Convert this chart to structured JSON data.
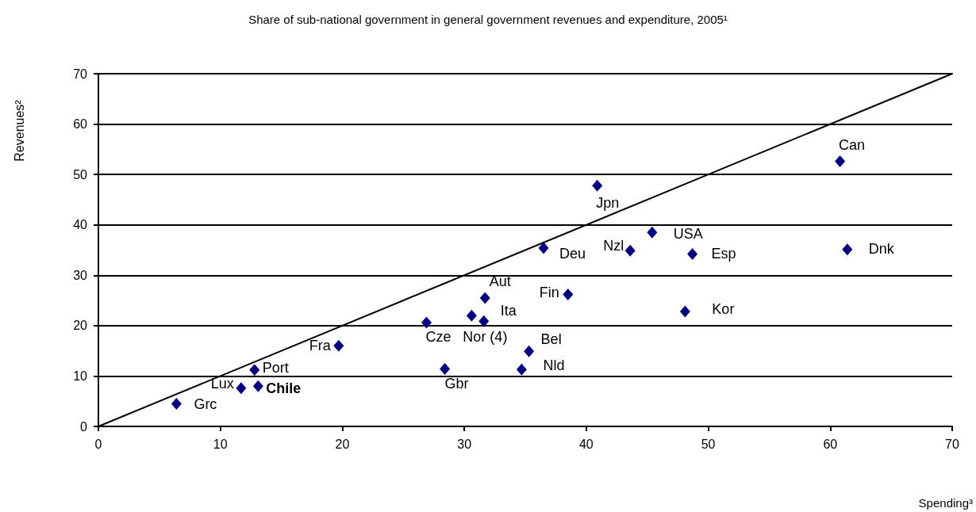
{
  "chart_data": {
    "type": "scatter",
    "title": "Share of sub-national government in general government revenues and expenditure, 2005¹",
    "xlabel": "Spending³",
    "ylabel": "Revenues²",
    "xlim": [
      0,
      70
    ],
    "ylim": [
      0,
      70
    ],
    "xticks": [
      0,
      10,
      20,
      30,
      40,
      50,
      60,
      70
    ],
    "yticks": [
      0,
      10,
      20,
      30,
      40,
      50,
      60,
      70
    ],
    "grid": "y",
    "series": [
      {
        "type": "scatter",
        "color": "#000080",
        "marker": "diamond",
        "x": [
          6.4,
          11.7,
          13.1,
          12.8,
          19.7,
          26.9,
          28.4,
          30.6,
          31.6,
          31.7,
          38.5,
          35.3,
          34.7,
          36.5,
          40.9,
          43.6,
          45.4,
          48.7,
          48.1,
          60.8,
          61.4
        ],
        "values": [
          4.5,
          7.6,
          8.0,
          11.2,
          16.0,
          20.6,
          11.4,
          22.0,
          20.9,
          25.5,
          26.2,
          14.9,
          11.3,
          35.4,
          47.8,
          34.9,
          38.5,
          34.2,
          22.8,
          52.6,
          35.1
        ]
      },
      {
        "type": "line",
        "color": "#000000",
        "x": [
          0,
          70
        ],
        "values": [
          0,
          70
        ]
      }
    ],
    "annotations": [
      {
        "text": "Grc",
        "x": 6.4,
        "y": 4.5
      },
      {
        "text": "Lux",
        "x": 11.7,
        "y": 7.6
      },
      {
        "text": "Chile",
        "x": 13.1,
        "y": 8.0
      },
      {
        "text": "Port",
        "x": 12.8,
        "y": 11.2
      },
      {
        "text": "Fra",
        "x": 19.7,
        "y": 16.0
      },
      {
        "text": "Cze",
        "x": 26.9,
        "y": 20.6
      },
      {
        "text": "Gbr",
        "x": 28.4,
        "y": 11.4
      },
      {
        "text": "Nor (4)",
        "x": 30.6,
        "y": 22.0
      },
      {
        "text": "Ita",
        "x": 31.6,
        "y": 20.9
      },
      {
        "text": "Aut",
        "x": 31.7,
        "y": 25.5
      },
      {
        "text": "Fin",
        "x": 38.5,
        "y": 26.2
      },
      {
        "text": "Bel",
        "x": 35.3,
        "y": 14.9
      },
      {
        "text": "Nld",
        "x": 34.7,
        "y": 11.3
      },
      {
        "text": "Deu",
        "x": 36.5,
        "y": 35.4
      },
      {
        "text": "Jpn",
        "x": 40.9,
        "y": 47.8
      },
      {
        "text": "Nzl",
        "x": 43.6,
        "y": 34.9
      },
      {
        "text": "USA",
        "x": 45.4,
        "y": 38.5
      },
      {
        "text": "Esp",
        "x": 48.7,
        "y": 34.2
      },
      {
        "text": "Kor",
        "x": 48.1,
        "y": 22.8
      },
      {
        "text": "Can",
        "x": 60.8,
        "y": 52.6
      },
      {
        "text": "Dnk",
        "x": 61.4,
        "y": 35.1
      }
    ]
  }
}
